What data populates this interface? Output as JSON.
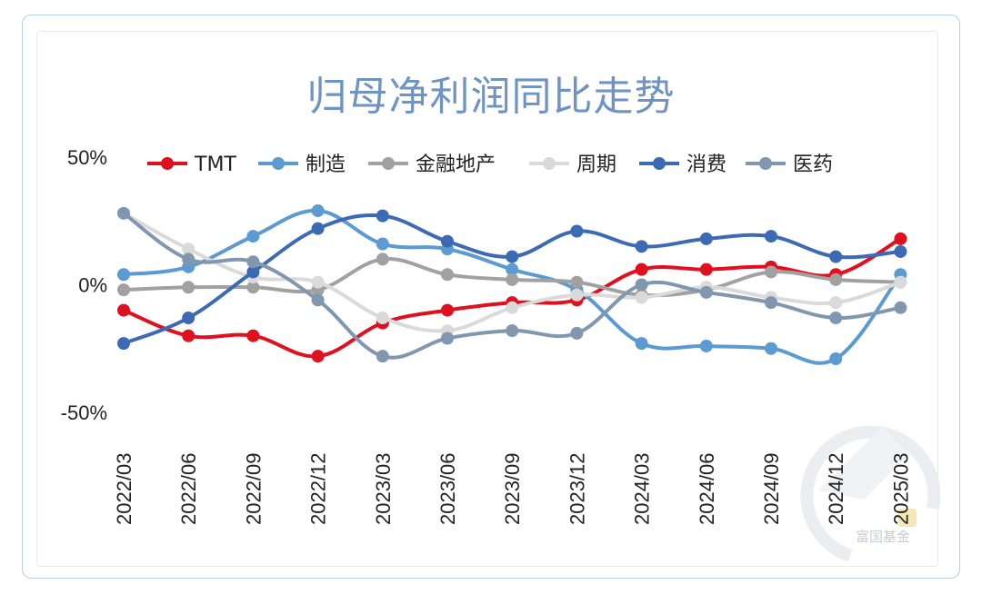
{
  "chart_data": {
    "type": "line",
    "title": "归母净利润同比走势",
    "xlabel": "",
    "ylabel": "",
    "categories": [
      "2022/03",
      "2022/06",
      "2022/09",
      "2022/12",
      "2023/03",
      "2023/06",
      "2023/09",
      "2023/12",
      "2024/03",
      "2024/06",
      "2024/09",
      "2024/12",
      "2025/03"
    ],
    "yticks": [
      "50%",
      "0%",
      "-50%"
    ],
    "ytick_values": [
      50,
      0,
      -50
    ],
    "ylim": [
      -50,
      50
    ],
    "grid": false,
    "legend_position": "top",
    "series": [
      {
        "name": "TMT",
        "color": "#e1101e",
        "values": [
          -10,
          -20,
          -20,
          -28,
          -15,
          -10,
          -7,
          -6,
          6,
          6,
          7,
          4,
          18
        ]
      },
      {
        "name": "制造",
        "color": "#5b9bd1",
        "values": [
          4,
          7,
          19,
          29,
          16,
          14,
          6,
          -2,
          -23,
          -24,
          -25,
          -29,
          4
        ]
      },
      {
        "name": "金融地产",
        "color": "#a1a1a1",
        "values": [
          -2,
          -1,
          -1,
          -2,
          10,
          4,
          2,
          1,
          -4,
          -2,
          5,
          2,
          1
        ]
      },
      {
        "name": "周期",
        "color": "#dadada",
        "values": [
          28,
          14,
          3,
          1,
          -13,
          -18,
          -9,
          -4,
          -5,
          -1,
          -5,
          -7,
          1
        ]
      },
      {
        "name": "消费",
        "color": "#3d6ab4",
        "values": [
          -23,
          -13,
          5,
          22,
          27,
          17,
          11,
          21,
          15,
          18,
          19,
          11,
          13
        ]
      },
      {
        "name": "医药",
        "color": "#8197b0",
        "values": [
          28,
          10,
          9,
          -6,
          -28,
          -21,
          -18,
          -19,
          0,
          -3,
          -7,
          -13,
          -9
        ]
      }
    ]
  },
  "watermark": {
    "text": "富国基金"
  }
}
